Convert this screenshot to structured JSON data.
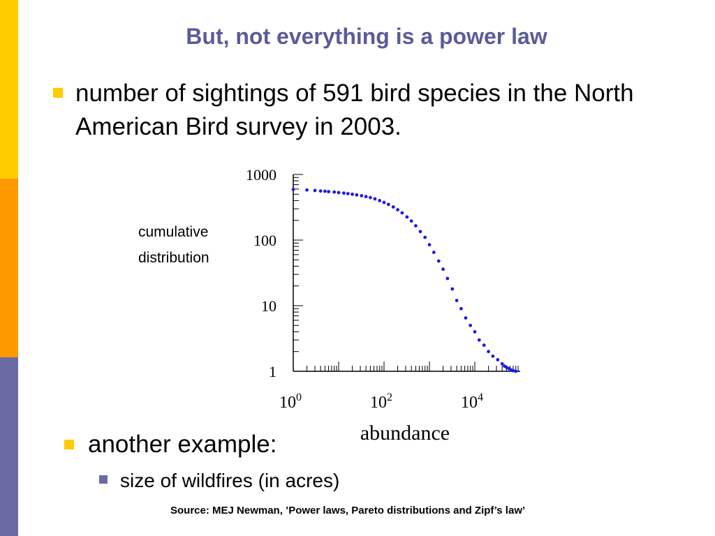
{
  "slide": {
    "title": "But, not everything is a power law",
    "bullet1": "number of sightings of 591 bird species in the North American Bird survey in 2003.",
    "bullet2": "another example:",
    "sub_bullet": "size of wildfires (in acres)",
    "source": "Source: MEJ Newman, ’Power laws, Pareto distributions and Zipf’s law’",
    "ylabel_line1": "cumulative",
    "ylabel_line2": "distribution"
  },
  "colors": {
    "title": "#5b5b99",
    "bullet": "#ffcc00",
    "sub_bullet": "#6b6ba3",
    "sidebar": [
      "#ffcc00",
      "#ff9900",
      "#6b6ba3"
    ],
    "points": "#1a1ae6"
  },
  "chart_data": {
    "type": "scatter",
    "xscale": "log",
    "yscale": "log",
    "xlabel": "abundance",
    "ylabel": "cumulative distribution",
    "xlim": [
      1,
      100000
    ],
    "ylim": [
      1,
      1000
    ],
    "x_ticks": [
      {
        "base": "10",
        "exp": "0",
        "value": 1
      },
      {
        "base": "10",
        "exp": "2",
        "value": 100
      },
      {
        "base": "10",
        "exp": "4",
        "value": 10000
      }
    ],
    "y_ticks": [
      {
        "label": "1000",
        "value": 1000
      },
      {
        "label": "100",
        "value": 100
      },
      {
        "label": "10",
        "value": 10
      },
      {
        "label": "1",
        "value": 1
      }
    ],
    "series": [
      {
        "x": [
          1,
          2,
          3,
          4,
          5,
          6,
          8,
          10,
          13,
          16,
          20,
          25,
          32,
          40,
          50,
          63,
          80,
          100,
          125,
          160,
          200,
          250,
          320,
          400,
          500,
          630,
          800,
          1000,
          1250,
          1600,
          2000,
          2500,
          3200,
          4000,
          5000,
          6300,
          8000,
          10000,
          12500,
          16000,
          20000,
          25000,
          32000,
          40000,
          45000,
          50000,
          56000,
          63000,
          70000,
          80000
        ],
        "y": [
          591,
          580,
          570,
          560,
          555,
          548,
          540,
          530,
          520,
          510,
          500,
          488,
          475,
          460,
          445,
          425,
          400,
          375,
          350,
          320,
          290,
          260,
          225,
          195,
          165,
          135,
          110,
          85,
          65,
          48,
          36,
          26,
          18,
          12,
          9,
          6.5,
          5,
          4,
          3,
          2.5,
          2,
          1.7,
          1.5,
          1.3,
          1.2,
          1.15,
          1.1,
          1.05,
          1.02,
          1
        ]
      }
    ]
  }
}
